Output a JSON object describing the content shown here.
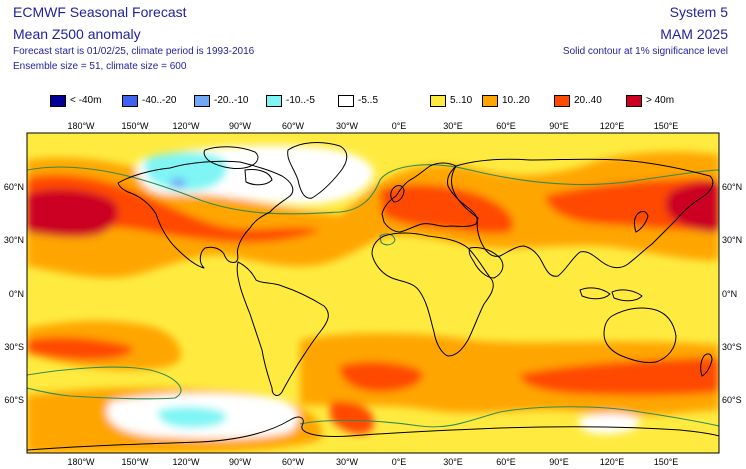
{
  "header": {
    "title": "ECMWF Seasonal Forecast",
    "subtitle": "Mean Z500 anomaly",
    "forecast_info": "Forecast start is 01/02/25, climate period is 1993-2016",
    "ensemble_info": "Ensemble size = 51, climate size = 600",
    "system": "System 5",
    "period": "MAM 2025",
    "contour_note": "Solid contour at 1% significance level"
  },
  "legend": [
    {
      "label": "< -40m",
      "color": "#000099"
    },
    {
      "label": "-40..-20",
      "color": "#3d63f0"
    },
    {
      "label": "-20..-10",
      "color": "#6fa8f5"
    },
    {
      "label": "-10..-5",
      "color": "#7ff5f5"
    },
    {
      "label": "-5..5",
      "color": "#ffffff"
    },
    {
      "label": "5..10",
      "color": "#ffeb40"
    },
    {
      "label": "10..20",
      "color": "#ffa500"
    },
    {
      "label": "20..40",
      "color": "#ff4a00"
    },
    {
      "label": "> 40m",
      "color": "#cc0022"
    }
  ],
  "axes": {
    "lon_labels": [
      "180°W",
      "150°W",
      "120°W",
      "90°W",
      "60°W",
      "30°W",
      "0°E",
      "30°E",
      "60°E",
      "90°E",
      "120°E",
      "150°E"
    ],
    "lat_labels": [
      "60°N",
      "30°N",
      "0°N",
      "30°S",
      "60°S"
    ]
  },
  "colors": {
    "background_field": "#ffeb40",
    "coastline": "#000000",
    "significance_contour": "#2e8b57"
  }
}
